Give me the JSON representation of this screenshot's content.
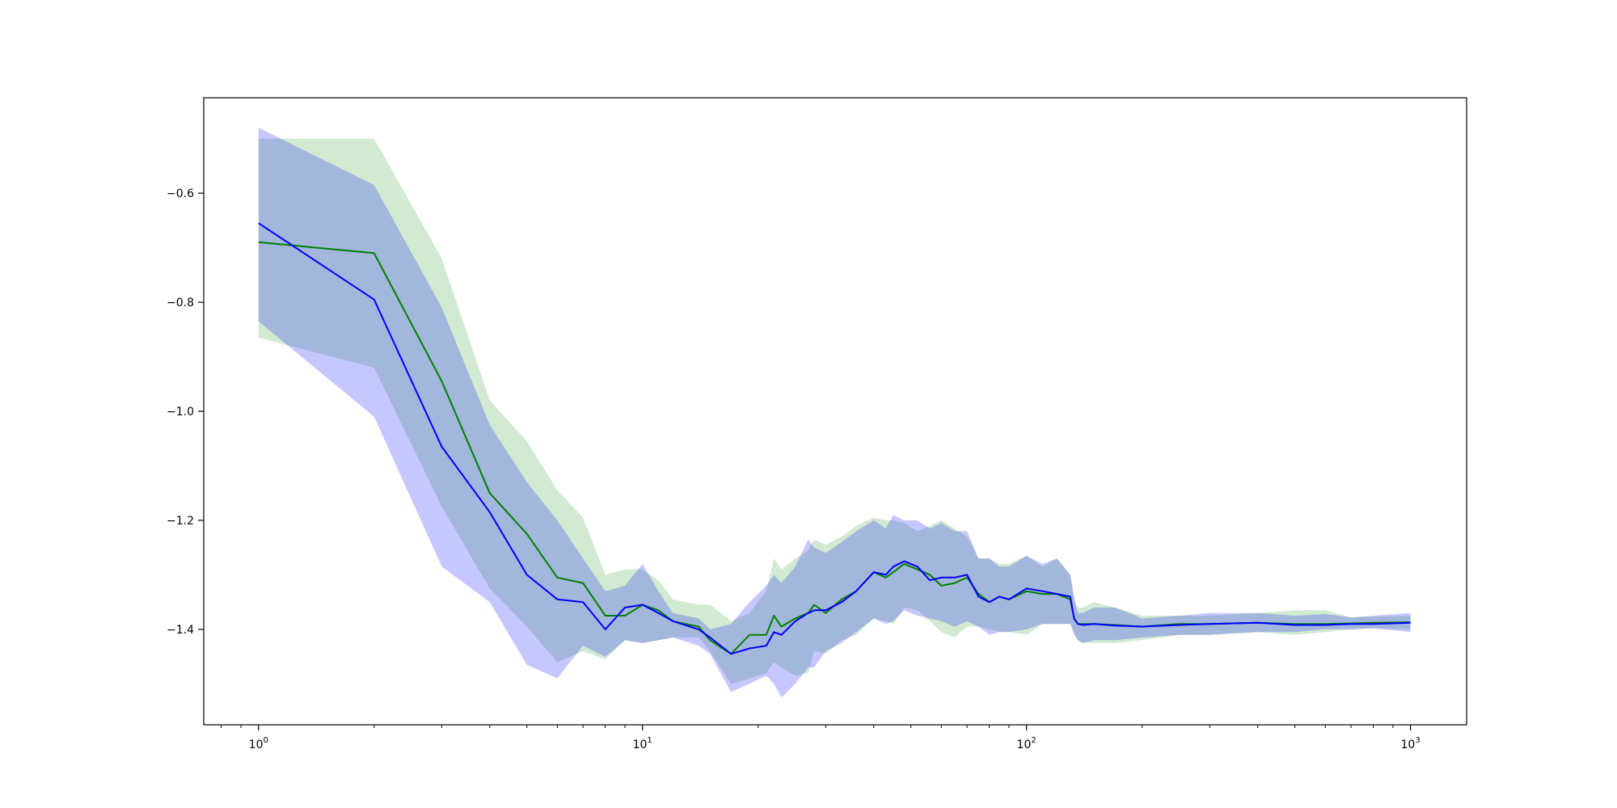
{
  "chart_data": {
    "type": "line",
    "title": "",
    "xlabel": "",
    "ylabel": "",
    "xscale": "log",
    "xlim": [
      0.72,
      1400
    ],
    "ylim": [
      -1.575,
      -0.425
    ],
    "grid": false,
    "legend": "none",
    "x_ticks": [
      {
        "value": 1,
        "base": "10",
        "exp": "0"
      },
      {
        "value": 10,
        "base": "10",
        "exp": "1"
      },
      {
        "value": 100,
        "base": "10",
        "exp": "2"
      },
      {
        "value": 1000,
        "base": "10",
        "exp": "3"
      }
    ],
    "y_ticks": [
      {
        "value": -1.4,
        "label": "−1.4"
      },
      {
        "value": -1.2,
        "label": "−1.2"
      },
      {
        "value": -1.0,
        "label": "−1.0"
      },
      {
        "value": -0.8,
        "label": "−0.8"
      },
      {
        "value": -0.6,
        "label": "−0.6"
      }
    ],
    "series": [
      {
        "color": "#008000",
        "band_color": "#2ca02c",
        "x": [
          1,
          2,
          3,
          4,
          5,
          6,
          7,
          8,
          9,
          10,
          11,
          12,
          14,
          15,
          17,
          19,
          21,
          22,
          23,
          25,
          27,
          28,
          30,
          33,
          36,
          40,
          43,
          45,
          48,
          52,
          56,
          60,
          65,
          70,
          75,
          80,
          85,
          90,
          100,
          110,
          120,
          130,
          133,
          136,
          140,
          150,
          170,
          200,
          250,
          300,
          400,
          500,
          600,
          700,
          800,
          1000
        ],
        "y": [
          -0.69,
          -0.71,
          -0.945,
          -1.15,
          -1.225,
          -1.305,
          -1.315,
          -1.375,
          -1.375,
          -1.355,
          -1.365,
          -1.385,
          -1.395,
          -1.42,
          -1.445,
          -1.41,
          -1.41,
          -1.375,
          -1.395,
          -1.38,
          -1.37,
          -1.355,
          -1.37,
          -1.345,
          -1.33,
          -1.295,
          -1.305,
          -1.295,
          -1.28,
          -1.29,
          -1.3,
          -1.32,
          -1.315,
          -1.305,
          -1.335,
          -1.35,
          -1.34,
          -1.345,
          -1.33,
          -1.335,
          -1.335,
          -1.345,
          -1.38,
          -1.39,
          -1.39,
          -1.39,
          -1.392,
          -1.395,
          -1.39,
          -1.39,
          -1.388,
          -1.39,
          -1.39,
          -1.389,
          -1.388,
          -1.387
        ],
        "upper": [
          -0.5,
          -0.5,
          -0.72,
          -0.98,
          -1.055,
          -1.145,
          -1.195,
          -1.3,
          -1.29,
          -1.29,
          -1.31,
          -1.345,
          -1.355,
          -1.355,
          -1.385,
          -1.37,
          -1.33,
          -1.27,
          -1.29,
          -1.27,
          -1.255,
          -1.235,
          -1.245,
          -1.23,
          -1.21,
          -1.195,
          -1.2,
          -1.2,
          -1.205,
          -1.22,
          -1.21,
          -1.2,
          -1.215,
          -1.23,
          -1.27,
          -1.27,
          -1.28,
          -1.28,
          -1.265,
          -1.285,
          -1.27,
          -1.3,
          -1.35,
          -1.36,
          -1.36,
          -1.35,
          -1.36,
          -1.375,
          -1.375,
          -1.375,
          -1.37,
          -1.365,
          -1.365,
          -1.378,
          -1.377,
          -1.375
        ],
        "lower": [
          -0.865,
          -0.92,
          -1.175,
          -1.325,
          -1.395,
          -1.46,
          -1.44,
          -1.455,
          -1.42,
          -1.425,
          -1.42,
          -1.415,
          -1.415,
          -1.44,
          -1.5,
          -1.49,
          -1.48,
          -1.46,
          -1.47,
          -1.485,
          -1.48,
          -1.44,
          -1.445,
          -1.42,
          -1.41,
          -1.38,
          -1.385,
          -1.39,
          -1.36,
          -1.365,
          -1.385,
          -1.405,
          -1.415,
          -1.395,
          -1.395,
          -1.4,
          -1.405,
          -1.405,
          -1.41,
          -1.39,
          -1.39,
          -1.39,
          -1.405,
          -1.42,
          -1.425,
          -1.425,
          -1.425,
          -1.42,
          -1.41,
          -1.41,
          -1.405,
          -1.41,
          -1.405,
          -1.4,
          -1.398,
          -1.4
        ]
      },
      {
        "color": "#0000ff",
        "band_color": "#0000ff",
        "x": [
          1,
          2,
          3,
          4,
          5,
          6,
          7,
          8,
          9,
          10,
          11,
          12,
          14,
          15,
          17,
          19,
          21,
          22,
          23,
          25,
          27,
          28,
          30,
          33,
          36,
          40,
          43,
          45,
          48,
          52,
          56,
          60,
          65,
          70,
          75,
          80,
          85,
          90,
          100,
          110,
          120,
          130,
          133,
          136,
          140,
          150,
          170,
          200,
          250,
          300,
          400,
          500,
          600,
          700,
          800,
          1000
        ],
        "y": [
          -0.655,
          -0.795,
          -1.065,
          -1.185,
          -1.3,
          -1.345,
          -1.35,
          -1.4,
          -1.36,
          -1.355,
          -1.37,
          -1.385,
          -1.4,
          -1.415,
          -1.445,
          -1.435,
          -1.43,
          -1.405,
          -1.41,
          -1.385,
          -1.37,
          -1.365,
          -1.365,
          -1.35,
          -1.33,
          -1.295,
          -1.3,
          -1.285,
          -1.275,
          -1.285,
          -1.31,
          -1.305,
          -1.305,
          -1.3,
          -1.34,
          -1.35,
          -1.34,
          -1.345,
          -1.325,
          -1.33,
          -1.335,
          -1.34,
          -1.38,
          -1.39,
          -1.392,
          -1.39,
          -1.393,
          -1.395,
          -1.392,
          -1.39,
          -1.388,
          -1.392,
          -1.392,
          -1.39,
          -1.39,
          -1.388
        ],
        "upper": [
          -0.48,
          -0.585,
          -0.81,
          -1.025,
          -1.13,
          -1.2,
          -1.27,
          -1.33,
          -1.32,
          -1.28,
          -1.33,
          -1.37,
          -1.38,
          -1.4,
          -1.39,
          -1.35,
          -1.32,
          -1.3,
          -1.315,
          -1.285,
          -1.235,
          -1.25,
          -1.26,
          -1.24,
          -1.22,
          -1.2,
          -1.215,
          -1.19,
          -1.2,
          -1.2,
          -1.215,
          -1.205,
          -1.22,
          -1.22,
          -1.27,
          -1.27,
          -1.285,
          -1.285,
          -1.265,
          -1.28,
          -1.27,
          -1.3,
          -1.34,
          -1.37,
          -1.37,
          -1.36,
          -1.36,
          -1.38,
          -1.375,
          -1.37,
          -1.37,
          -1.375,
          -1.372,
          -1.378,
          -1.375,
          -1.37
        ],
        "lower": [
          -0.835,
          -1.01,
          -1.285,
          -1.35,
          -1.465,
          -1.49,
          -1.43,
          -1.45,
          -1.42,
          -1.425,
          -1.42,
          -1.415,
          -1.43,
          -1.445,
          -1.515,
          -1.5,
          -1.485,
          -1.5,
          -1.525,
          -1.5,
          -1.47,
          -1.47,
          -1.44,
          -1.425,
          -1.405,
          -1.38,
          -1.39,
          -1.385,
          -1.365,
          -1.375,
          -1.38,
          -1.385,
          -1.395,
          -1.385,
          -1.395,
          -1.41,
          -1.405,
          -1.405,
          -1.4,
          -1.39,
          -1.39,
          -1.39,
          -1.41,
          -1.42,
          -1.425,
          -1.42,
          -1.42,
          -1.415,
          -1.41,
          -1.41,
          -1.405,
          -1.405,
          -1.4,
          -1.4,
          -1.398,
          -1.405
        ]
      }
    ]
  }
}
